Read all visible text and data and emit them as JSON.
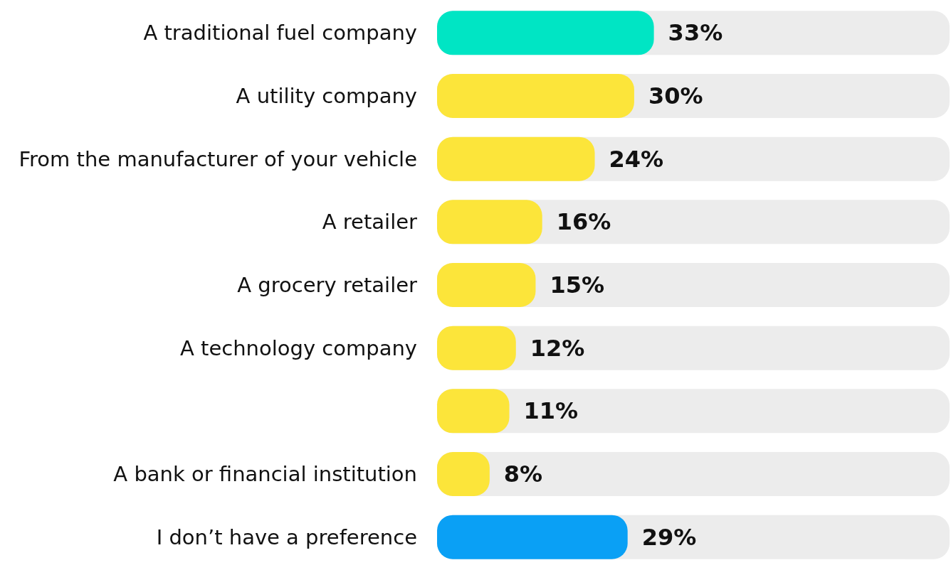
{
  "chart_data": {
    "type": "bar",
    "orientation": "horizontal",
    "categories": [
      "A traditional fuel company",
      "A utility company",
      "From the manufacturer of your vehicle",
      "A retailer",
      "A grocery retailer",
      "A technology company",
      null,
      "A bank or financial institution",
      "I don’t have a preference"
    ],
    "values": [
      33,
      30,
      24,
      16,
      15,
      12,
      11,
      8,
      29
    ],
    "colors": [
      "#00e5c4",
      "#fce53a",
      "#fce53a",
      "#fce53a",
      "#fce53a",
      "#fce53a",
      "#fce53a",
      "#fce53a",
      "#0aa0f5"
    ],
    "value_labels": [
      "33%",
      "30%",
      "24%",
      "16%",
      "15%",
      "12%",
      "11%",
      "8%",
      "29%"
    ],
    "xlim": [
      0,
      78
    ],
    "tick_labels": "y"
  }
}
